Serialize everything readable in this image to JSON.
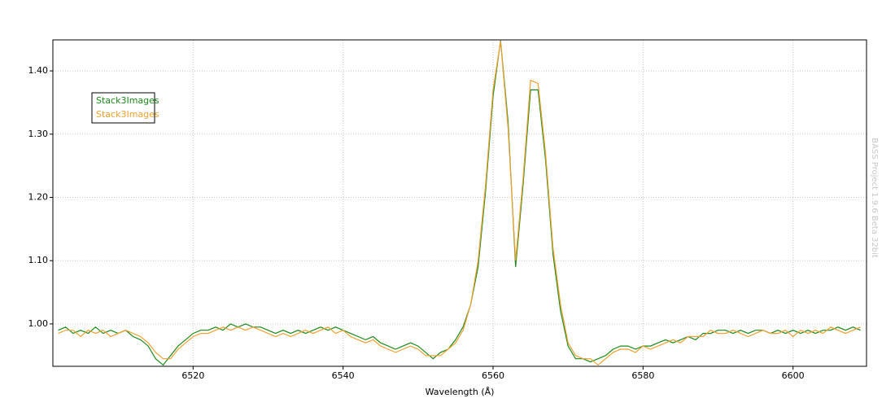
{
  "chart_data": {
    "type": "line",
    "x_label": "Wavelength (Å)",
    "watermark": "BASS Project 1.9.6 Beta 32bit",
    "x": [
      6502,
      6503,
      6504,
      6505,
      6506,
      6507,
      6508,
      6509,
      6510,
      6511,
      6512,
      6513,
      6514,
      6515,
      6516,
      6517,
      6518,
      6519,
      6520,
      6521,
      6522,
      6523,
      6524,
      6525,
      6526,
      6527,
      6528,
      6529,
      6530,
      6531,
      6532,
      6533,
      6534,
      6535,
      6536,
      6537,
      6538,
      6539,
      6540,
      6541,
      6542,
      6543,
      6544,
      6545,
      6546,
      6547,
      6548,
      6549,
      6550,
      6551,
      6552,
      6553,
      6554,
      6555,
      6556,
      6557,
      6558,
      6559,
      6560,
      6561,
      6562,
      6563,
      6564,
      6565,
      6566,
      6567,
      6568,
      6569,
      6570,
      6571,
      6572,
      6573,
      6574,
      6575,
      6576,
      6577,
      6578,
      6579,
      6580,
      6581,
      6582,
      6583,
      6584,
      6585,
      6586,
      6587,
      6588,
      6589,
      6590,
      6591,
      6592,
      6593,
      6594,
      6595,
      6596,
      6597,
      6598,
      6599,
      6600,
      6601,
      6602,
      6603,
      6604,
      6605,
      6606,
      6607,
      6608,
      6609
    ],
    "series": [
      {
        "name": "Stack3Images",
        "color": "#1a8a1a",
        "values": [
          0.99,
          0.995,
          0.985,
          0.99,
          0.985,
          0.995,
          0.985,
          0.99,
          0.985,
          0.99,
          0.98,
          0.975,
          0.965,
          0.945,
          0.935,
          0.95,
          0.965,
          0.975,
          0.985,
          0.99,
          0.99,
          0.995,
          0.99,
          1.0,
          0.995,
          1.0,
          0.995,
          0.995,
          0.99,
          0.985,
          0.99,
          0.985,
          0.99,
          0.985,
          0.99,
          0.995,
          0.99,
          0.995,
          0.99,
          0.985,
          0.98,
          0.975,
          0.98,
          0.97,
          0.965,
          0.96,
          0.965,
          0.97,
          0.965,
          0.955,
          0.945,
          0.955,
          0.96,
          0.975,
          0.995,
          1.03,
          1.09,
          1.21,
          1.36,
          1.448,
          1.32,
          1.09,
          1.22,
          1.37,
          1.37,
          1.26,
          1.11,
          1.02,
          0.965,
          0.945,
          0.945,
          0.94,
          0.945,
          0.95,
          0.96,
          0.965,
          0.965,
          0.96,
          0.965,
          0.965,
          0.97,
          0.975,
          0.97,
          0.975,
          0.98,
          0.975,
          0.985,
          0.985,
          0.99,
          0.99,
          0.985,
          0.99,
          0.985,
          0.99,
          0.99,
          0.985,
          0.99,
          0.985,
          0.99,
          0.985,
          0.99,
          0.985,
          0.99,
          0.99,
          0.995,
          0.99,
          0.995,
          0.99
        ]
      },
      {
        "name": "Stack3Images",
        "color": "#f0a030",
        "values": [
          0.985,
          0.99,
          0.99,
          0.98,
          0.99,
          0.985,
          0.99,
          0.98,
          0.985,
          0.99,
          0.985,
          0.98,
          0.97,
          0.955,
          0.945,
          0.945,
          0.96,
          0.97,
          0.98,
          0.985,
          0.985,
          0.99,
          0.995,
          0.99,
          0.995,
          0.99,
          0.995,
          0.99,
          0.985,
          0.98,
          0.985,
          0.98,
          0.985,
          0.99,
          0.985,
          0.99,
          0.995,
          0.985,
          0.99,
          0.98,
          0.975,
          0.97,
          0.975,
          0.965,
          0.96,
          0.955,
          0.96,
          0.965,
          0.96,
          0.95,
          0.95,
          0.95,
          0.96,
          0.97,
          0.99,
          1.03,
          1.1,
          1.22,
          1.37,
          1.447,
          1.31,
          1.1,
          1.23,
          1.385,
          1.38,
          1.27,
          1.12,
          1.03,
          0.97,
          0.95,
          0.945,
          0.945,
          0.935,
          0.945,
          0.955,
          0.96,
          0.96,
          0.955,
          0.965,
          0.96,
          0.965,
          0.97,
          0.975,
          0.97,
          0.98,
          0.98,
          0.98,
          0.99,
          0.985,
          0.985,
          0.99,
          0.985,
          0.98,
          0.985,
          0.99,
          0.985,
          0.985,
          0.99,
          0.98,
          0.99,
          0.985,
          0.99,
          0.985,
          0.995,
          0.99,
          0.985,
          0.99,
          0.995
        ]
      }
    ],
    "xlim": [
      6501.3,
      6609.8
    ],
    "ylim": [
      0.933,
      1.449
    ],
    "xticks": [
      6520,
      6540,
      6560,
      6580,
      6600
    ],
    "yticks": [
      {
        "value": 1,
        "label": "1.00"
      },
      {
        "value": 1.1,
        "label": "1.10"
      },
      {
        "value": 1.2,
        "label": "1.20"
      },
      {
        "value": 1.3,
        "label": "1.30"
      },
      {
        "value": 1.4,
        "label": "1.40"
      }
    ],
    "grid": true,
    "legend": "upper left"
  }
}
